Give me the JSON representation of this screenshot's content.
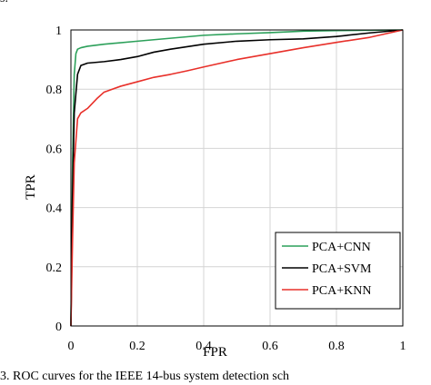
{
  "fragment_top": "s.",
  "caption": "3. ROC curves for the IEEE 14-bus system detection sch",
  "chart_data": {
    "type": "line",
    "title": "",
    "xlabel": "FPR",
    "ylabel": "TPR",
    "xlim": [
      0,
      1
    ],
    "ylim": [
      0,
      1
    ],
    "xticks": [
      "0",
      "0.2",
      "0.4",
      "0.6",
      "0.8",
      "1"
    ],
    "yticks": [
      "0",
      "0.2",
      "0.4",
      "0.6",
      "0.8",
      "1"
    ],
    "grid": true,
    "legend_position": "bottom-right",
    "series": [
      {
        "name": "PCA+CNN",
        "color": "#2ca05a",
        "points": [
          [
            0,
            0
          ],
          [
            0.005,
            0.55
          ],
          [
            0.01,
            0.85
          ],
          [
            0.015,
            0.92
          ],
          [
            0.02,
            0.935
          ],
          [
            0.03,
            0.94
          ],
          [
            0.05,
            0.945
          ],
          [
            0.1,
            0.952
          ],
          [
            0.2,
            0.962
          ],
          [
            0.3,
            0.972
          ],
          [
            0.4,
            0.982
          ],
          [
            0.5,
            0.987
          ],
          [
            0.6,
            0.991
          ],
          [
            0.7,
            0.996
          ],
          [
            0.8,
            0.998
          ],
          [
            0.9,
            0.999
          ],
          [
            1.0,
            1.0
          ]
        ]
      },
      {
        "name": "PCA+SVM",
        "color": "#000000",
        "points": [
          [
            0,
            0
          ],
          [
            0.005,
            0.45
          ],
          [
            0.01,
            0.72
          ],
          [
            0.02,
            0.85
          ],
          [
            0.03,
            0.88
          ],
          [
            0.05,
            0.888
          ],
          [
            0.1,
            0.893
          ],
          [
            0.15,
            0.9
          ],
          [
            0.2,
            0.91
          ],
          [
            0.25,
            0.925
          ],
          [
            0.3,
            0.935
          ],
          [
            0.4,
            0.952
          ],
          [
            0.5,
            0.962
          ],
          [
            0.6,
            0.967
          ],
          [
            0.7,
            0.97
          ],
          [
            0.8,
            0.978
          ],
          [
            0.9,
            0.99
          ],
          [
            1.0,
            1.0
          ]
        ]
      },
      {
        "name": "PCA+KNN",
        "color": "#e8302a",
        "points": [
          [
            0,
            0
          ],
          [
            0.005,
            0.3
          ],
          [
            0.01,
            0.55
          ],
          [
            0.02,
            0.7
          ],
          [
            0.03,
            0.72
          ],
          [
            0.05,
            0.735
          ],
          [
            0.08,
            0.77
          ],
          [
            0.1,
            0.79
          ],
          [
            0.15,
            0.81
          ],
          [
            0.2,
            0.825
          ],
          [
            0.25,
            0.84
          ],
          [
            0.3,
            0.85
          ],
          [
            0.35,
            0.862
          ],
          [
            0.4,
            0.875
          ],
          [
            0.5,
            0.9
          ],
          [
            0.6,
            0.92
          ],
          [
            0.7,
            0.94
          ],
          [
            0.8,
            0.958
          ],
          [
            0.9,
            0.975
          ],
          [
            1.0,
            1.0
          ]
        ]
      }
    ]
  }
}
